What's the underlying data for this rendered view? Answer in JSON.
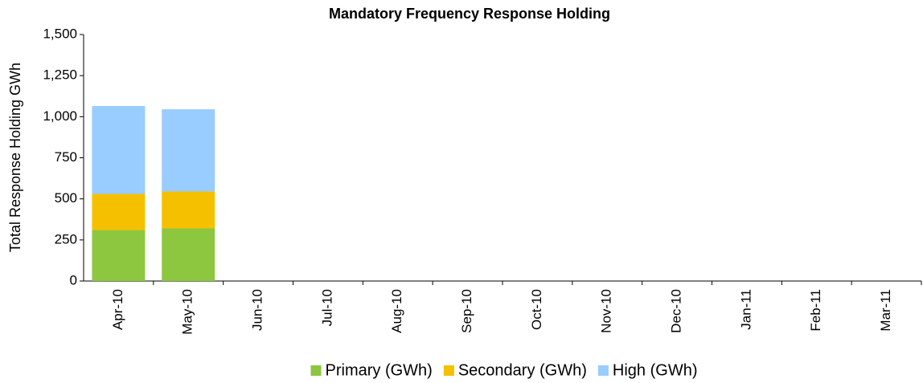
{
  "chart_data": {
    "type": "bar",
    "stacked": true,
    "title": "Mandatory Frequency Response Holding",
    "y_label": "Total Response Holding GWh",
    "categories": [
      "Apr-10",
      "May-10",
      "Jun-10",
      "Jul-10",
      "Aug-10",
      "Sep-10",
      "Oct-10",
      "Nov-10",
      "Dec-10",
      "Jan-11",
      "Feb-11",
      "Mar-11"
    ],
    "series": [
      {
        "name": "Primary (GWh)",
        "color": "#8dc63f",
        "values": [
          310,
          320,
          null,
          null,
          null,
          null,
          null,
          null,
          null,
          null,
          null,
          null
        ]
      },
      {
        "name": "Secondary (GWh)",
        "color": "#f5c000",
        "values": [
          220,
          225,
          null,
          null,
          null,
          null,
          null,
          null,
          null,
          null,
          null,
          null
        ]
      },
      {
        "name": "High (GWh)",
        "color": "#99ccff",
        "values": [
          535,
          500,
          null,
          null,
          null,
          null,
          null,
          null,
          null,
          null,
          null,
          null
        ]
      }
    ],
    "ylim": [
      0,
      1500
    ],
    "yticks": [
      0,
      250,
      500,
      750,
      {
        "value": 1000,
        "label": "1,000"
      },
      {
        "value": 1250,
        "label": "1,250"
      },
      {
        "value": 1500,
        "label": "1,500"
      }
    ],
    "legend": "bottom"
  }
}
